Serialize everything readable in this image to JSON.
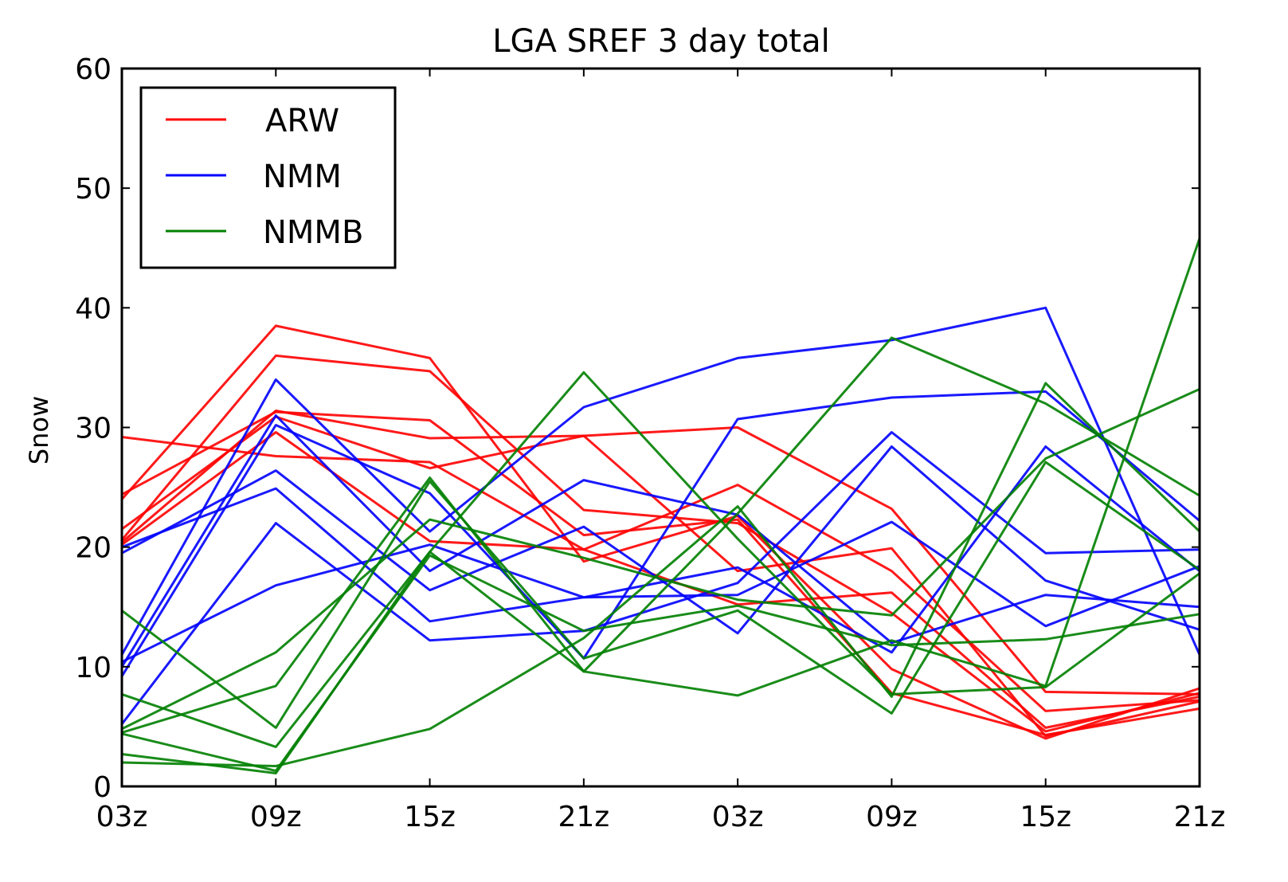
{
  "chart_data": {
    "type": "line",
    "title": "LGA SREF 3 day total",
    "xlabel": "",
    "ylabel": "Snow",
    "categories": [
      "03z",
      "09z",
      "15z",
      "21z",
      "03z",
      "09z",
      "15z",
      "21z"
    ],
    "ylim": [
      0,
      60
    ],
    "yticks": [
      "0",
      "10",
      "20",
      "30",
      "40",
      "50",
      "60"
    ],
    "grid": false,
    "legend_position": "upper-left",
    "colors": {
      "ARW": "#ff0000",
      "NMM": "#0000ff",
      "NMMB": "#008000"
    },
    "legend": [
      "ARW",
      "NMM",
      "NMMB"
    ],
    "series": [
      {
        "group": "ARW",
        "values": [
          24.0,
          38.5,
          35.8,
          18.8,
          22.6,
          9.8,
          4.0,
          8.2
        ]
      },
      {
        "group": "ARW",
        "values": [
          24.4,
          31.3,
          30.6,
          21.0,
          22.3,
          7.8,
          4.3,
          6.5
        ]
      },
      {
        "group": "ARW",
        "values": [
          20.6,
          36.0,
          34.7,
          23.1,
          22.0,
          14.5,
          4.6,
          7.8
        ]
      },
      {
        "group": "ARW",
        "values": [
          21.5,
          30.9,
          26.6,
          29.3,
          30.0,
          23.2,
          7.9,
          7.7
        ]
      },
      {
        "group": "ARW",
        "values": [
          29.2,
          27.6,
          27.1,
          19.8,
          15.2,
          16.2,
          4.9,
          7.5
        ]
      },
      {
        "group": "ARW",
        "values": [
          20.2,
          29.6,
          20.5,
          19.8,
          25.2,
          18.0,
          6.3,
          7.2
        ]
      },
      {
        "group": "ARW",
        "values": [
          20.4,
          31.4,
          29.1,
          29.3,
          18.0,
          19.9,
          4.2,
          7.1
        ]
      },
      {
        "group": "NMM",
        "values": [
          11.0,
          34.0,
          21.3,
          31.7,
          35.8,
          37.3,
          40.0,
          11.0
        ]
      },
      {
        "group": "NMM",
        "values": [
          9.2,
          30.2,
          24.5,
          10.7,
          30.7,
          32.5,
          33.0,
          22.2
        ]
      },
      {
        "group": "NMM",
        "values": [
          10.0,
          31.0,
          18.0,
          25.6,
          22.7,
          12.0,
          16.0,
          15.0
        ]
      },
      {
        "group": "NMM",
        "values": [
          19.5,
          26.4,
          16.4,
          21.7,
          12.8,
          28.4,
          17.2,
          13.1
        ]
      },
      {
        "group": "NMM",
        "values": [
          5.2,
          22.0,
          12.2,
          13.0,
          17.0,
          29.6,
          19.5,
          19.8
        ]
      },
      {
        "group": "NMM",
        "values": [
          20.0,
          24.9,
          13.8,
          15.8,
          16.0,
          22.1,
          13.4,
          18.4
        ]
      },
      {
        "group": "NMM",
        "values": [
          10.4,
          16.8,
          20.2,
          15.8,
          18.3,
          11.2,
          28.4,
          18.0
        ]
      },
      {
        "group": "NMMB",
        "values": [
          4.5,
          8.4,
          25.8,
          9.6,
          22.8,
          37.5,
          32.0,
          24.3
        ]
      },
      {
        "group": "NMMB",
        "values": [
          2.0,
          1.7,
          4.8,
          12.4,
          23.4,
          7.5,
          33.7,
          21.3
        ]
      },
      {
        "group": "NMMB",
        "values": [
          14.7,
          4.9,
          25.5,
          10.7,
          14.7,
          6.1,
          27.1,
          18.1
        ]
      },
      {
        "group": "NMMB",
        "values": [
          4.8,
          11.2,
          22.3,
          19.1,
          15.6,
          14.3,
          27.4,
          33.2
        ]
      },
      {
        "group": "NMMB",
        "values": [
          7.7,
          3.3,
          19.6,
          34.6,
          20.7,
          7.7,
          8.3,
          17.8
        ]
      },
      {
        "group": "NMMB",
        "values": [
          2.7,
          1.1,
          19.6,
          9.6,
          7.6,
          12.2,
          8.4,
          45.8
        ]
      },
      {
        "group": "NMMB",
        "values": [
          4.4,
          1.3,
          19.3,
          13.0,
          15.1,
          11.8,
          12.3,
          14.4
        ]
      }
    ]
  }
}
